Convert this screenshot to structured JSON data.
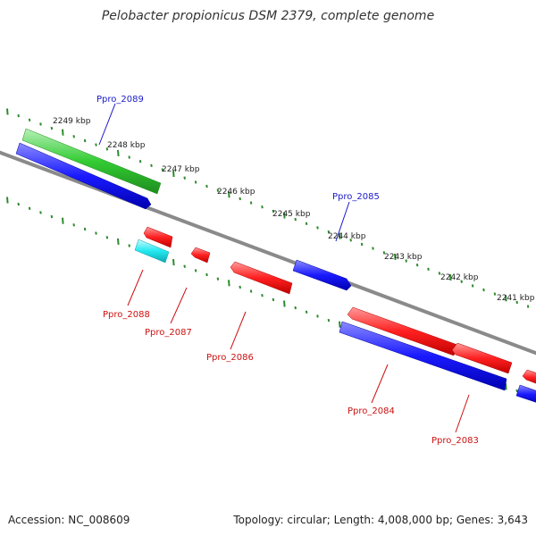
{
  "title": "Pelobacter propionicus DSM 2379, complete genome",
  "footer": {
    "accession": "Accession: NC_008609",
    "summary": "Topology: circular; Length: 4,008,000 bp; Genes: 3,643"
  },
  "colors": {
    "backbone": "#8a8a8a",
    "tick": "#2e8b2e",
    "gene_red": "#ff2020",
    "gene_blue": "#1a1aff",
    "gene_green": "#33cc33",
    "gene_cyan": "#22e8f0",
    "label_blue": "#1a1acc",
    "label_red": "#cc1111"
  },
  "kbp_labels": [
    "2249 kbp",
    "2248 kbp",
    "2247 kbp",
    "2246 kbp",
    "2245 kbp",
    "2244 kbp",
    "2243 kbp",
    "2242 kbp",
    "2241 kbp"
  ],
  "gene_labels": [
    {
      "id": "ppro-2089",
      "text": "Ppro_2089",
      "color": "blue"
    },
    {
      "id": "ppro-2085",
      "text": "Ppro_2085",
      "color": "blue"
    },
    {
      "id": "ppro-2088",
      "text": "Ppro_2088",
      "color": "red"
    },
    {
      "id": "ppro-2087",
      "text": "Ppro_2087",
      "color": "red"
    },
    {
      "id": "ppro-2086",
      "text": "Ppro_2086",
      "color": "red"
    },
    {
      "id": "ppro-2084",
      "text": "Ppro_2084",
      "color": "red"
    },
    {
      "id": "ppro-2083",
      "text": "Ppro_2083",
      "color": "red"
    }
  ],
  "genes": [
    {
      "id": "green-feature",
      "color": "green"
    },
    {
      "id": "blue-feature-1",
      "color": "blue"
    },
    {
      "id": "blue-feature-2",
      "color": "blue"
    },
    {
      "id": "blue-feature-3",
      "color": "blue"
    },
    {
      "id": "blue-feature-4",
      "color": "blue"
    },
    {
      "id": "cyan-feature",
      "color": "cyan"
    },
    {
      "id": "red-feature-1",
      "color": "red"
    },
    {
      "id": "red-feature-2",
      "color": "red"
    },
    {
      "id": "red-feature-3",
      "color": "red"
    },
    {
      "id": "red-feature-4",
      "color": "red"
    },
    {
      "id": "red-feature-5",
      "color": "red"
    },
    {
      "id": "red-feature-6",
      "color": "red"
    }
  ]
}
